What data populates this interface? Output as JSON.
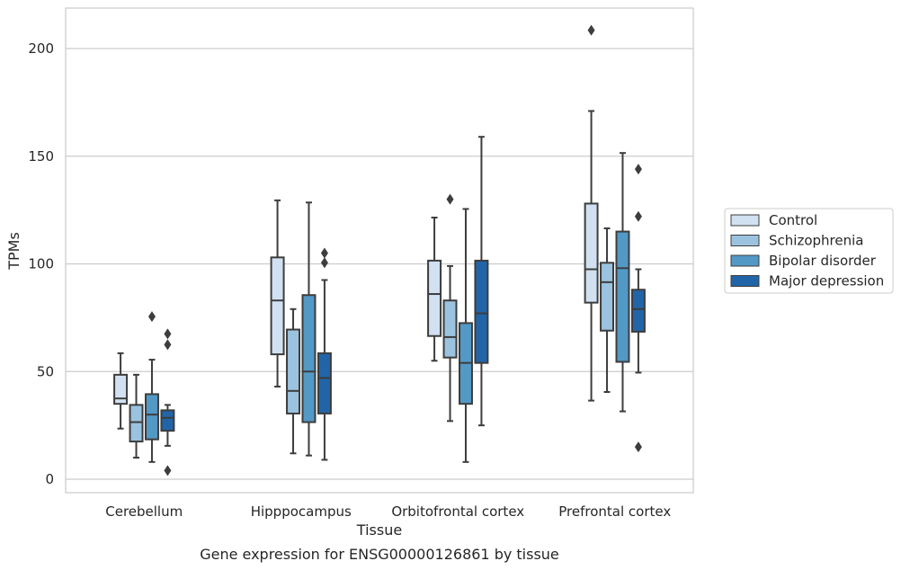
{
  "chart_data": {
    "type": "box",
    "title": "",
    "caption": "Gene expression for ENSG00000126861 by tissue",
    "xlabel": "Tissue",
    "ylabel": "TPMs",
    "ylim": [
      -5,
      220
    ],
    "yticks": [
      0,
      50,
      100,
      150,
      200
    ],
    "grid": "horizontal",
    "legend_position": "right",
    "categories": [
      "Cerebellum",
      "Hipppocampus",
      "Orbitofrontal cortex",
      "Prefrontal cortex"
    ],
    "series": [
      {
        "name": "Control",
        "color": "#d1e1f1",
        "boxes": [
          {
            "whisker_low": 23.5,
            "q1": 35,
            "median": 37.5,
            "q3": 48.5,
            "whisker_high": 58.5,
            "outliers": []
          },
          {
            "whisker_low": 43,
            "q1": 58,
            "median": 83,
            "q3": 103,
            "whisker_high": 129.5,
            "outliers": []
          },
          {
            "whisker_low": 55,
            "q1": 66.5,
            "median": 86,
            "q3": 101.5,
            "whisker_high": 121.5,
            "outliers": []
          },
          {
            "whisker_low": 36.5,
            "q1": 82,
            "median": 97.5,
            "q3": 128,
            "whisker_high": 171,
            "outliers": [
              208.5
            ]
          }
        ]
      },
      {
        "name": "Schizophrenia",
        "color": "#9bc3df",
        "boxes": [
          {
            "whisker_low": 10,
            "q1": 17.5,
            "median": 26.5,
            "q3": 34.5,
            "whisker_high": 48.5,
            "outliers": []
          },
          {
            "whisker_low": 12,
            "q1": 30.5,
            "median": 41,
            "q3": 69.5,
            "whisker_high": 79,
            "outliers": []
          },
          {
            "whisker_low": 27,
            "q1": 56.5,
            "median": 66,
            "q3": 83,
            "whisker_high": 99,
            "outliers": [
              130
            ]
          },
          {
            "whisker_low": 40.5,
            "q1": 69,
            "median": 91.5,
            "q3": 100.5,
            "whisker_high": 116.5,
            "outliers": []
          }
        ]
      },
      {
        "name": "Bipolar disorder",
        "color": "#5399c6",
        "boxes": [
          {
            "whisker_low": 8,
            "q1": 18.5,
            "median": 30,
            "q3": 39.5,
            "whisker_high": 55.5,
            "outliers": [
              75.5
            ]
          },
          {
            "whisker_low": 11,
            "q1": 26.5,
            "median": 50,
            "q3": 85.5,
            "whisker_high": 128.5,
            "outliers": []
          },
          {
            "whisker_low": 8,
            "q1": 35,
            "median": 54,
            "q3": 72.5,
            "whisker_high": 125.5,
            "outliers": []
          },
          {
            "whisker_low": 31.5,
            "q1": 54.5,
            "median": 98,
            "q3": 115,
            "whisker_high": 151.5,
            "outliers": []
          }
        ]
      },
      {
        "name": "Major depression",
        "color": "#2165a8",
        "boxes": [
          {
            "whisker_low": 15.5,
            "q1": 22.5,
            "median": 28.5,
            "q3": 32,
            "whisker_high": 34.5,
            "outliers": [
              67.5,
              62.5,
              4
            ]
          },
          {
            "whisker_low": 9,
            "q1": 30.5,
            "median": 47,
            "q3": 58.5,
            "whisker_high": 92.5,
            "outliers": [
              105,
              100.5
            ]
          },
          {
            "whisker_low": 25,
            "q1": 54,
            "median": 77,
            "q3": 101.5,
            "whisker_high": 159,
            "outliers": []
          },
          {
            "whisker_low": 49.5,
            "q1": 68.5,
            "median": 79,
            "q3": 88,
            "whisker_high": 97.5,
            "outliers": [
              144,
              122,
              15
            ]
          }
        ]
      }
    ]
  }
}
